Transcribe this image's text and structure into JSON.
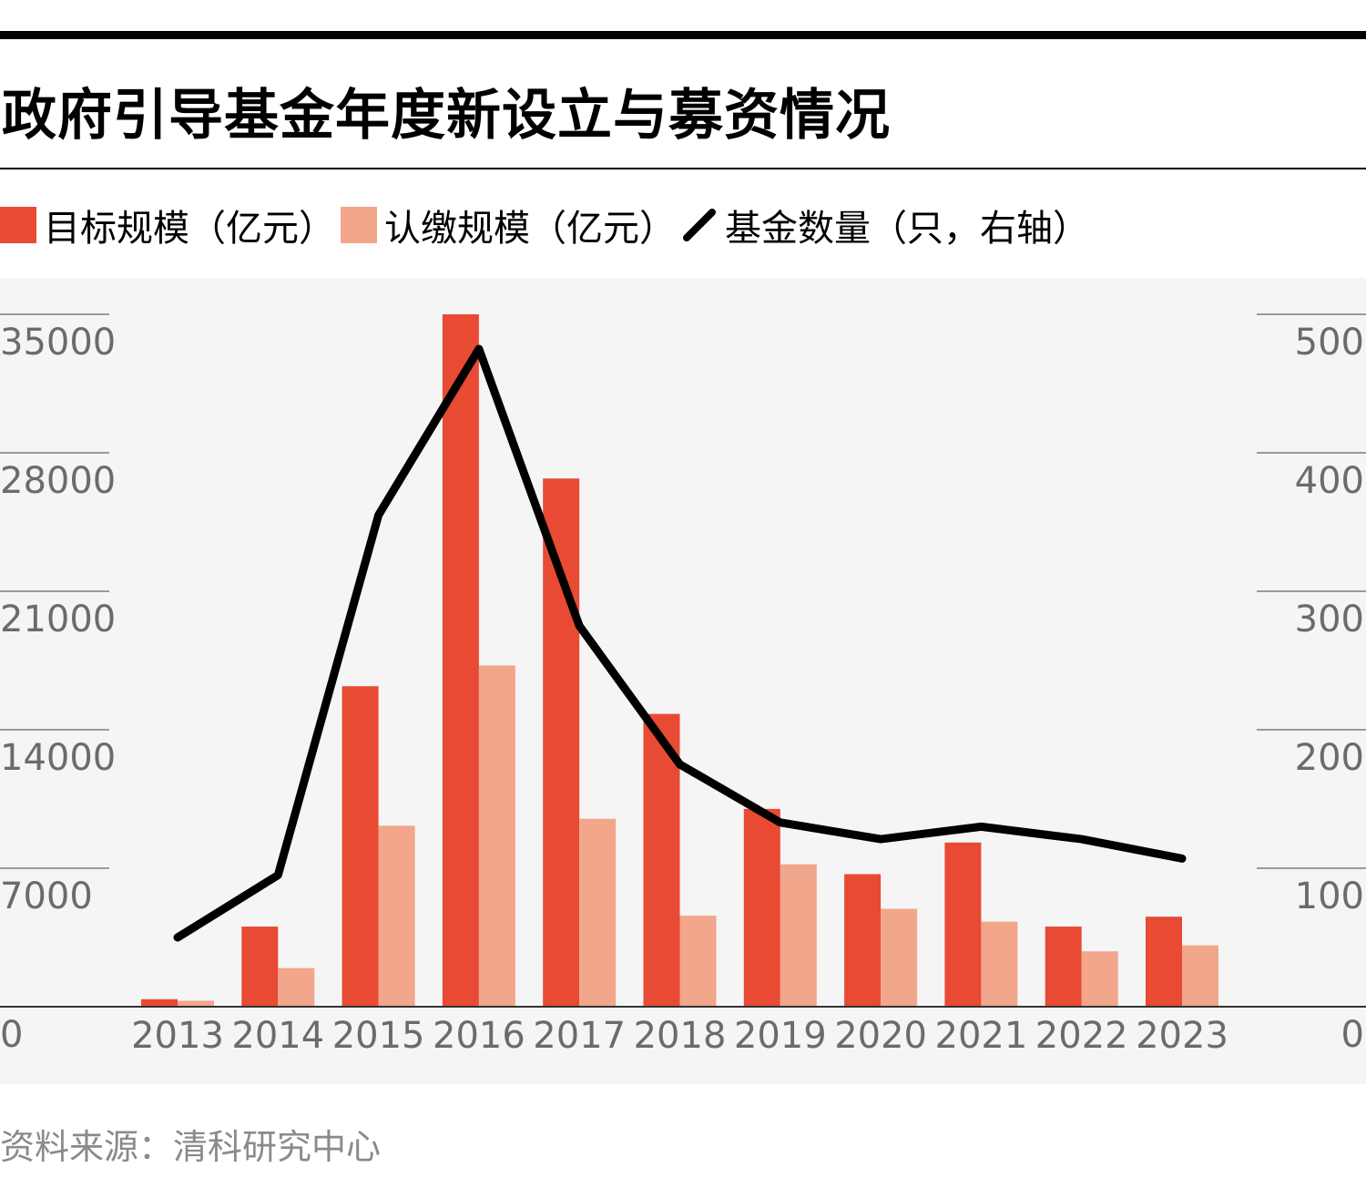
{
  "title": "政府引导基金年度新设立与募资情况",
  "source": "资料来源：清科研究中心",
  "colors": {
    "target": "#e84a34",
    "subscribed": "#f2a68c",
    "count_line": "#000000",
    "axis_text": "#6b6b6b",
    "plot_bg": "#f5f5f5"
  },
  "chart_data": {
    "type": "bar",
    "categories": [
      "2013",
      "2014",
      "2015",
      "2016",
      "2017",
      "2018",
      "2019",
      "2020",
      "2021",
      "2022",
      "2023"
    ],
    "series": [
      {
        "name": "目标规模（亿元）",
        "type": "bar",
        "axis": "left",
        "values": [
          380,
          4050,
          16200,
          35000,
          26700,
          14800,
          10000,
          6700,
          8300,
          4050,
          4550
        ]
      },
      {
        "name": "认缴规模（亿元）",
        "type": "bar",
        "axis": "left",
        "values": [
          300,
          1950,
          9150,
          17250,
          9500,
          4600,
          7200,
          4950,
          4300,
          2800,
          3100
        ]
      },
      {
        "name": "基金数量（只，右轴）",
        "type": "line",
        "axis": "right",
        "values": [
          50,
          95,
          355,
          475,
          275,
          175,
          133,
          121,
          130,
          121,
          107
        ]
      }
    ],
    "y_left": {
      "ticks": [
        "0",
        "7000",
        "14000",
        "21000",
        "28000",
        "35000"
      ],
      "ylim": [
        0,
        35000
      ]
    },
    "y_right": {
      "ticks": [
        "0",
        "100",
        "200",
        "300",
        "400",
        "500"
      ],
      "ylim": [
        0,
        500
      ]
    },
    "grid": false,
    "legend": "top-left"
  }
}
